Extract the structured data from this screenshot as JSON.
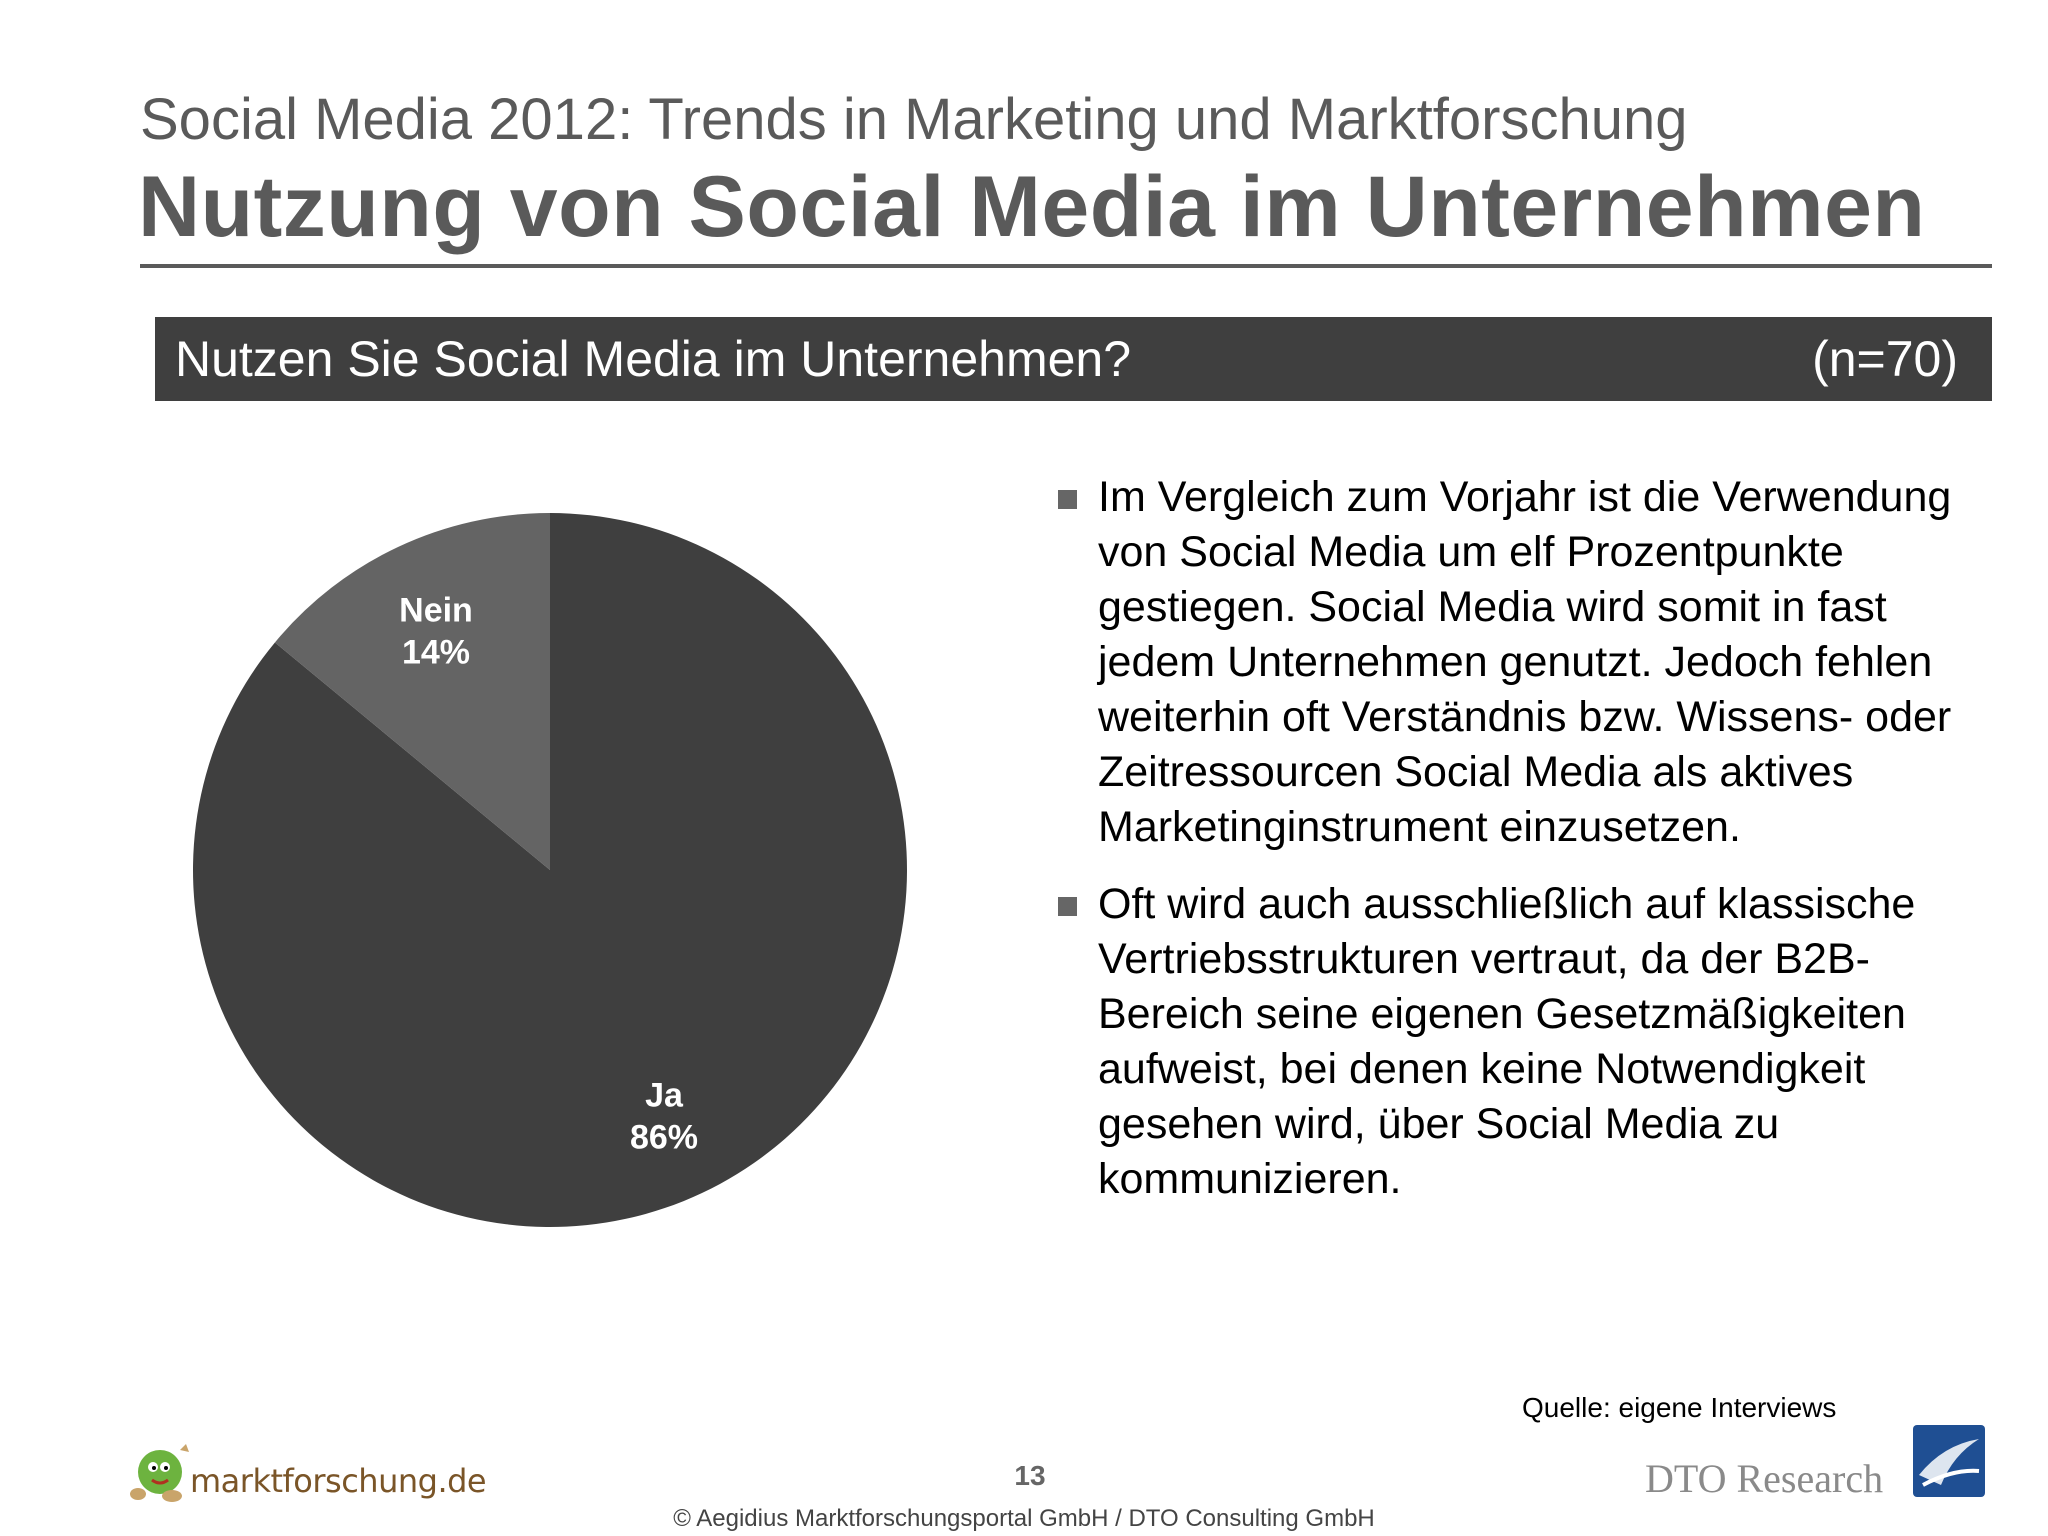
{
  "header": {
    "subtitle": "Social Media 2012: Trends in Marketing und Marktforschung",
    "title": "Nutzung von Social Media im Unternehmen"
  },
  "question": {
    "text": "Nutzen Sie Social Media im Unternehmen?",
    "sample": "(n=70)"
  },
  "chart_data": {
    "type": "pie",
    "categories": [
      "Ja",
      "Nein"
    ],
    "values": [
      86,
      14
    ],
    "labels": [
      "86%",
      "14%"
    ],
    "colors": [
      "#3f3f3f",
      "#646464"
    ],
    "title": ""
  },
  "bullets": [
    {
      "text": "Im Vergleich zum Vorjahr ist die Verwendung von Social Media um elf Prozentpunkte gestiegen. Social Media wird somit in fast jedem Unternehmen genutzt. Jedoch fehlen weiterhin oft Verständnis bzw. Wissens-  oder Zeitressourcen Social Media als aktives Marketinginstrument einzusetzen."
    },
    {
      "text": "Oft wird auch ausschließlich auf klassische Vertriebsstrukturen vertraut, da der B2B-Bereich seine eigenen Gesetzmäßigkeiten aufweist, bei denen keine Notwendigkeit gesehen wird, über Social Media zu kommunizieren."
    }
  ],
  "footer": {
    "source": "Quelle: eigene Interviews",
    "page_number": "13",
    "copyright": "© Aegidius Marktforschungsportal GmbH / DTO Consulting GmbH",
    "logo_left_text": "marktforschung.de",
    "logo_right_text": "DTO Research"
  }
}
